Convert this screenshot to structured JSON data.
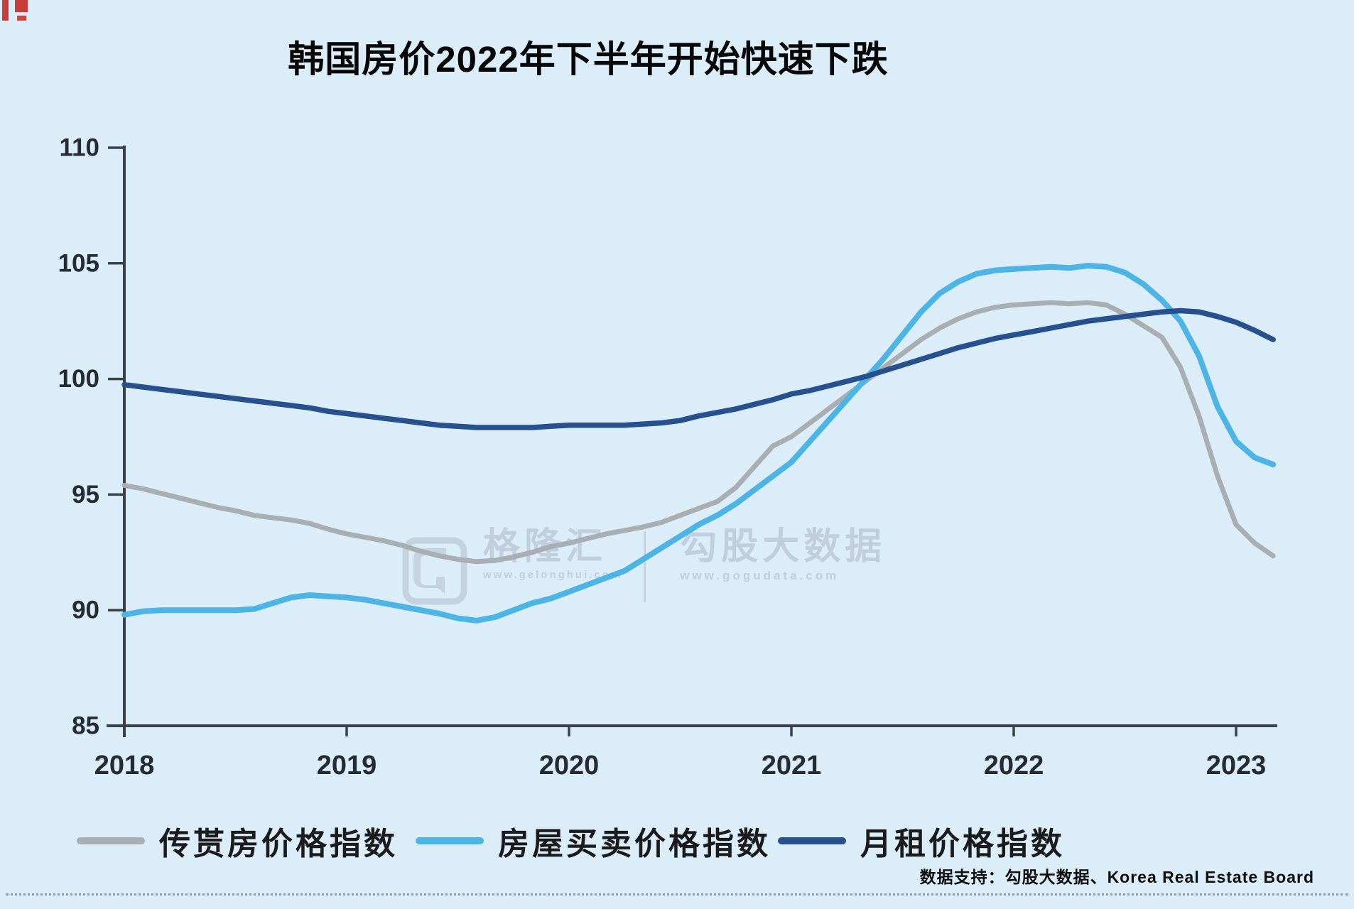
{
  "title": "韩国房价2022年下半年开始快速下跌",
  "watermark": {
    "brand": "格隆汇",
    "brand_url": "www.gelonghui.com",
    "partner": "勾股大数据",
    "partner_url": "www.gogudata.com"
  },
  "source_note": "数据支持：勾股大数据、Korea Real Estate Board",
  "legend": [
    {
      "label": "传贳房价格指数",
      "color": "#a9aeb2"
    },
    {
      "label": "房屋买卖价格指数",
      "color": "#4db5e6"
    },
    {
      "label": "月租价格指数",
      "color": "#27508f"
    }
  ],
  "chart_data": {
    "type": "line",
    "title": "韩国房价2022年下半年开始快速下跌",
    "xlabel": "",
    "ylabel": "",
    "x_ticks": [
      2018,
      2019,
      2020,
      2021,
      2022,
      2023
    ],
    "y_ticks": [
      85,
      90,
      95,
      100,
      105,
      110
    ],
    "xlim": [
      2018,
      2023.25
    ],
    "ylim": [
      85,
      110
    ],
    "grid": false,
    "legend_position": "bottom",
    "x_start_year": 2018,
    "x_step_months": 1,
    "series": [
      {
        "name": "传贳房价格指数",
        "color": "#a9aeb2",
        "width": 7,
        "values": [
          95.4,
          95.25,
          95.05,
          94.85,
          94.65,
          94.45,
          94.3,
          94.1,
          94.0,
          93.9,
          93.75,
          93.5,
          93.3,
          93.15,
          93.0,
          92.8,
          92.55,
          92.35,
          92.2,
          92.1,
          92.15,
          92.3,
          92.5,
          92.75,
          92.9,
          93.1,
          93.3,
          93.45,
          93.6,
          93.8,
          94.1,
          94.4,
          94.7,
          95.3,
          96.2,
          97.1,
          97.5,
          98.1,
          98.7,
          99.3,
          99.9,
          100.5,
          101.1,
          101.7,
          102.2,
          102.6,
          102.9,
          103.1,
          103.2,
          103.25,
          103.3,
          103.25,
          103.3,
          103.2,
          102.8,
          102.3,
          101.8,
          100.5,
          98.4,
          95.8,
          93.7,
          92.9,
          92.35
        ]
      },
      {
        "name": "房屋买卖价格指数",
        "color": "#4db5e6",
        "width": 8,
        "values": [
          89.8,
          89.95,
          90.0,
          90.0,
          90.0,
          90.0,
          90.0,
          90.05,
          90.3,
          90.55,
          90.65,
          90.6,
          90.55,
          90.45,
          90.3,
          90.15,
          90.0,
          89.85,
          89.65,
          89.55,
          89.7,
          90.0,
          90.3,
          90.5,
          90.8,
          91.1,
          91.4,
          91.7,
          92.2,
          92.7,
          93.2,
          93.7,
          94.1,
          94.6,
          95.2,
          95.8,
          96.4,
          97.3,
          98.2,
          99.1,
          100.0,
          100.9,
          101.9,
          102.9,
          103.7,
          104.2,
          104.55,
          104.7,
          104.75,
          104.8,
          104.85,
          104.8,
          104.9,
          104.85,
          104.6,
          104.1,
          103.4,
          102.5,
          101.0,
          98.8,
          97.3,
          96.6,
          96.3
        ]
      },
      {
        "name": "月租价格指数",
        "color": "#27508f",
        "width": 7.5,
        "values": [
          99.75,
          99.65,
          99.55,
          99.45,
          99.35,
          99.25,
          99.15,
          99.05,
          98.95,
          98.85,
          98.75,
          98.6,
          98.5,
          98.4,
          98.3,
          98.2,
          98.1,
          98.0,
          97.95,
          97.9,
          97.9,
          97.9,
          97.9,
          97.95,
          98.0,
          98.0,
          98.0,
          98.0,
          98.05,
          98.1,
          98.2,
          98.4,
          98.55,
          98.7,
          98.9,
          99.1,
          99.35,
          99.5,
          99.7,
          99.9,
          100.1,
          100.35,
          100.6,
          100.85,
          101.1,
          101.35,
          101.55,
          101.75,
          101.9,
          102.05,
          102.2,
          102.35,
          102.5,
          102.6,
          102.7,
          102.8,
          102.9,
          102.95,
          102.9,
          102.7,
          102.45,
          102.1,
          101.7
        ]
      }
    ]
  }
}
